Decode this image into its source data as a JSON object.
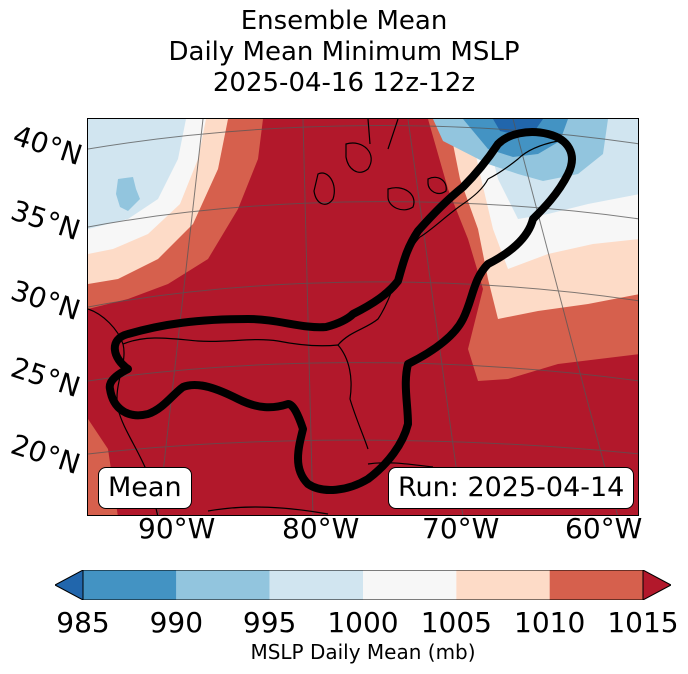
{
  "title": {
    "line1": "Ensemble Mean",
    "line2": "Daily Mean Minimum MSLP",
    "line3": "2025-04-16 12z-12z"
  },
  "map": {
    "lat_labels": [
      "40°N",
      "35°N",
      "30°N",
      "25°N",
      "20°N"
    ],
    "lon_labels": [
      "90°W",
      "80°W",
      "70°W",
      "60°W"
    ],
    "mean_label": "Mean",
    "run_label": "Run: 2025-04-14",
    "field_colors": {
      "below_985": "#2166ac",
      "985_990": "#4393c3",
      "990_995": "#92c5de",
      "995_1000": "#d1e5f0",
      "1000_1005": "#f7f7f7",
      "1005_1010": "#fddbc7",
      "1010_1015": "#d6604d",
      "above_1015": "#b2182b"
    },
    "contour_color": "#000000"
  },
  "colorbar": {
    "ticks": [
      "985",
      "990",
      "995",
      "1000",
      "1005",
      "1010",
      "1015"
    ],
    "colors": [
      "#4393c3",
      "#92c5de",
      "#d1e5f0",
      "#f7f7f7",
      "#fddbc7",
      "#d6604d"
    ],
    "under_color": "#2166ac",
    "over_color": "#b2182b",
    "label": "MSLP Daily Mean (mb)"
  }
}
